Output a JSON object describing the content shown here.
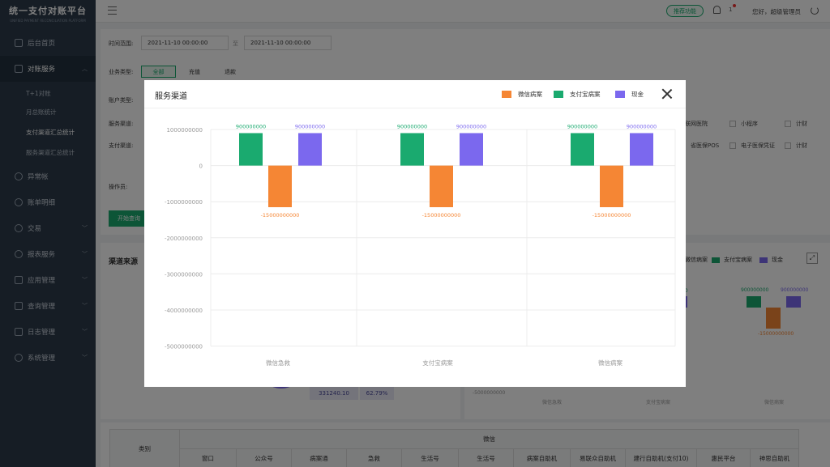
{
  "app": {
    "title": "统一支付对账平台",
    "subtitle": "UNIFIED PAYMENT RECONCILIATION PLATFORM"
  },
  "sidebar": {
    "items": [
      {
        "label": "后台首页"
      },
      {
        "label": "对账服务"
      },
      {
        "label": "异常帐"
      },
      {
        "label": "账单明细"
      },
      {
        "label": "交易"
      },
      {
        "label": "报表服务"
      },
      {
        "label": "应用管理"
      },
      {
        "label": "查询管理"
      },
      {
        "label": "日志管理"
      },
      {
        "label": "系统管理"
      }
    ],
    "subitems": [
      {
        "label": "T+1对账"
      },
      {
        "label": "月总账统计"
      },
      {
        "label": "支付渠道汇总统计"
      },
      {
        "label": "服务渠道汇总统计"
      }
    ]
  },
  "header": {
    "recommend": "推荐功能",
    "badge": "1",
    "greeting": "您好，超级管理员"
  },
  "filters": {
    "time_label": "时间范围:",
    "time_start": "2021-11-10  00:00:00",
    "time_sep": "至",
    "time_end": "2021-11-10  00:00:00",
    "biz_label": "业务类型:",
    "biz_options": [
      "全部",
      "充值",
      "退款"
    ],
    "account_label": "账户类型:",
    "service_label": "服务渠道:",
    "service_checks": [
      "互联网医院",
      "小程序",
      "计财"
    ],
    "pay_label": "支付渠道:",
    "pay_checks": [
      "省医保POS",
      "电子医保凭证",
      "计财"
    ],
    "operator_label": "操作员:",
    "search_btn": "开始查询"
  },
  "panels": {
    "left_title": "渠道来源",
    "left_amount": "331240.10",
    "left_pct": "62.79%",
    "right_legend": [
      "微信病案",
      "支付宝病案",
      "现金"
    ],
    "right_vals": {
      "pos": "900000000",
      "pos2": "900000000",
      "neg": "-15000000000",
      "frag": "00",
      "ytick": "-5000000000"
    },
    "right_cats": [
      "微信急救",
      "支付宝病案",
      "微信病案"
    ]
  },
  "table": {
    "header_left": "类别",
    "group": "微信",
    "cols": [
      "窗口",
      "公众号",
      "病案通",
      "急救",
      "生活号",
      "生活号",
      "病案自助机",
      "易联众自助机",
      "建行自助机(支付10)",
      "惠民平台",
      "神思自助机"
    ]
  },
  "modal": {
    "title": "服务渠道"
  },
  "chart_data": {
    "type": "bar",
    "categories": [
      "微信急救",
      "支付宝病案",
      "微信病案"
    ],
    "series": [
      {
        "name": "微信病案",
        "color": "#f58634",
        "values": [
          -15000000000,
          -15000000000,
          -15000000000
        ]
      },
      {
        "name": "支付宝病案",
        "color": "#1aaa6f",
        "values": [
          900000000,
          900000000,
          900000000
        ]
      },
      {
        "name": "现金",
        "color": "#7b68ee",
        "values": [
          900000000,
          900000000,
          900000000
        ]
      }
    ],
    "yticks": [
      "1000000000",
      "0",
      "-1000000000",
      "-2000000000",
      "-3000000000",
      "-4000000000",
      "-5000000000"
    ],
    "data_labels": {
      "pos": "900000000",
      "neg": "-15000000000"
    }
  }
}
